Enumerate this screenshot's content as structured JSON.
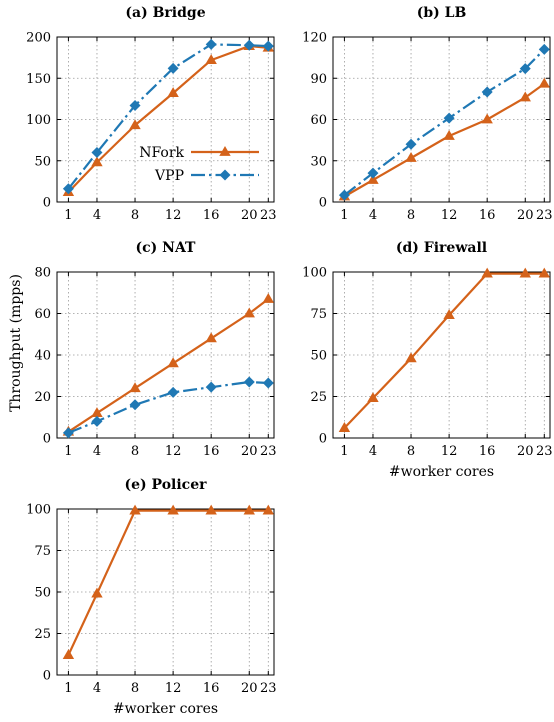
{
  "figure": {
    "ylabel": "Throughput (mpps)",
    "xlabel": "#worker cores"
  },
  "colors": {
    "NFork": "#d4621a",
    "VPP": "#1f78b4"
  },
  "chart_data": [
    {
      "type": "line",
      "title": "(a) Bridge",
      "categories": [
        "1",
        "4",
        "8",
        "12",
        "16",
        "20",
        "23"
      ],
      "ylim": [
        0,
        200
      ],
      "yticks": [
        0,
        50,
        100,
        150,
        200
      ],
      "grid": true,
      "legend": {
        "placement": "center-right",
        "entries": [
          "NFork",
          "VPP"
        ]
      },
      "series": [
        {
          "name": "NFork",
          "values": [
            12,
            48,
            93,
            132,
            172,
            189,
            187
          ]
        },
        {
          "name": "VPP",
          "values": [
            16,
            60,
            117,
            162,
            191,
            190,
            189
          ]
        }
      ]
    },
    {
      "type": "line",
      "title": "(b) LB",
      "categories": [
        "1",
        "4",
        "8",
        "12",
        "16",
        "20",
        "23"
      ],
      "ylim": [
        0,
        120
      ],
      "yticks": [
        0,
        30,
        60,
        90,
        120
      ],
      "grid": true,
      "series": [
        {
          "name": "NFork",
          "values": [
            4,
            16,
            32,
            48,
            60,
            76,
            86
          ]
        },
        {
          "name": "VPP",
          "values": [
            5,
            21,
            42,
            61,
            80,
            97,
            111
          ]
        }
      ]
    },
    {
      "type": "line",
      "title": "(c) NAT",
      "categories": [
        "1",
        "4",
        "8",
        "12",
        "16",
        "20",
        "23"
      ],
      "ylim": [
        0,
        80
      ],
      "yticks": [
        0,
        20,
        40,
        60,
        80
      ],
      "grid": true,
      "series": [
        {
          "name": "NFork",
          "values": [
            3,
            12,
            24,
            36,
            48,
            60,
            67
          ]
        },
        {
          "name": "VPP",
          "values": [
            2.5,
            8,
            16,
            22,
            24.5,
            27,
            26.5
          ]
        }
      ]
    },
    {
      "type": "line",
      "title": "(d) Firewall",
      "categories": [
        "1",
        "4",
        "8",
        "12",
        "16",
        "20",
        "23"
      ],
      "ylim": [
        0,
        100
      ],
      "yticks": [
        0,
        25,
        50,
        75,
        100
      ],
      "grid": true,
      "xlabel": "#worker cores",
      "series": [
        {
          "name": "NFork",
          "values": [
            6,
            24,
            48,
            74,
            99,
            99,
            99
          ]
        }
      ]
    },
    {
      "type": "line",
      "title": "(e) Policer",
      "categories": [
        "1",
        "4",
        "8",
        "12",
        "16",
        "20",
        "23"
      ],
      "ylim": [
        0,
        100
      ],
      "yticks": [
        0,
        25,
        50,
        75,
        100
      ],
      "grid": true,
      "xlabel": "#worker cores",
      "series": [
        {
          "name": "NFork",
          "values": [
            12,
            49,
            99,
            99,
            99,
            99,
            99
          ]
        }
      ]
    }
  ]
}
